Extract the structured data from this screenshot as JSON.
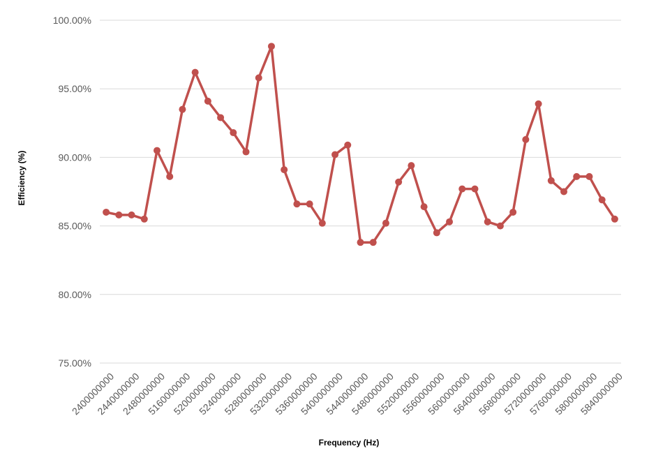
{
  "chart_data": {
    "type": "line",
    "xlabel": "Frequency (Hz)",
    "ylabel": "Efficiency (%)",
    "ylim": [
      75,
      100
    ],
    "y_ticks": [
      "75.00%",
      "80.00%",
      "85.00%",
      "90.00%",
      "95.00%",
      "100.00%"
    ],
    "y_tick_values": [
      75,
      80,
      85,
      90,
      95,
      100
    ],
    "grid": "horizontal",
    "legend": "none",
    "series_color": "#c0504d",
    "category_labels": [
      "2400000000",
      "2440000000",
      "2480000000",
      "5160000000",
      "5200000000",
      "5240000000",
      "5280000000",
      "5320000000",
      "5360000000",
      "5400000000",
      "5440000000",
      "5480000000",
      "5520000000",
      "5560000000",
      "5600000000",
      "5640000000",
      "5680000000",
      "5720000000",
      "5760000000",
      "5800000000",
      "5840000000"
    ],
    "series": [
      {
        "values": [
          86.0,
          85.8,
          85.8,
          85.5,
          90.5,
          88.6,
          93.5,
          96.2,
          94.1,
          92.9,
          91.8,
          90.4,
          95.8,
          98.1,
          89.1,
          86.6,
          86.6,
          85.2,
          90.2,
          90.9,
          83.8,
          83.8,
          85.2,
          88.2,
          89.4,
          86.4,
          84.5,
          85.3,
          87.7,
          87.7,
          85.3,
          85.0,
          86.0,
          91.3,
          93.9,
          88.3,
          87.5,
          88.6,
          88.6,
          86.9,
          85.5
        ]
      }
    ]
  }
}
